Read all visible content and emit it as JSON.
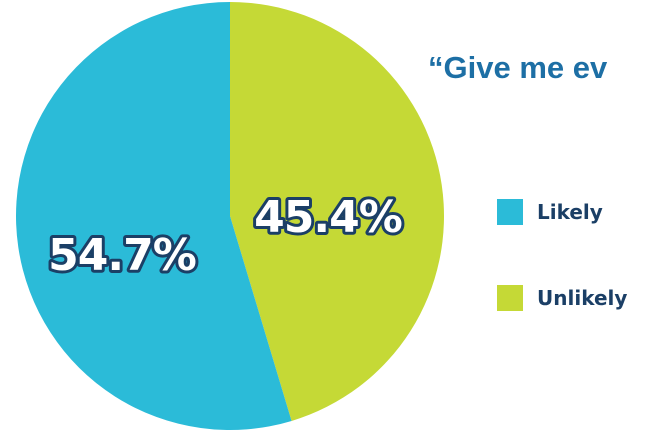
{
  "chart_data": {
    "type": "pie",
    "title": "“Give me ev",
    "series": [
      {
        "name": "Likely",
        "value": 54.7,
        "label": "54.7%",
        "color": "#2bbbd8"
      },
      {
        "name": "Unlikely",
        "value": 45.4,
        "label": "45.4%",
        "color": "#c5d936"
      }
    ],
    "legend": "right",
    "start_angle": "top",
    "direction": "clockwise-from-top-with-unlikely-first"
  },
  "colors": {
    "title": "#1d6fa5",
    "label_outline": "#1b3f66",
    "legend_text": "#1b3f66"
  }
}
